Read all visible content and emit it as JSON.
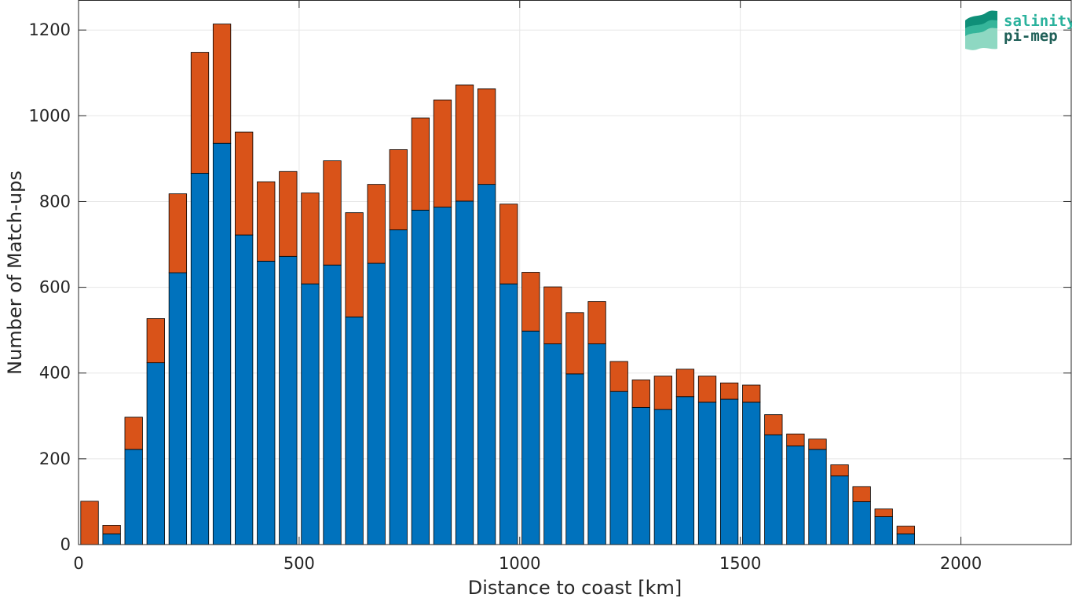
{
  "chart_data": {
    "type": "bar",
    "stacked": true,
    "xlabel": "Distance to coast [km]",
    "ylabel": "Number of Match-ups",
    "xlim": [
      0,
      2250
    ],
    "ylim": [
      0,
      1270
    ],
    "x_ticks": [
      0,
      500,
      1000,
      1500,
      2000
    ],
    "y_ticks": [
      0,
      200,
      400,
      600,
      800,
      1000,
      1200
    ],
    "grid": true,
    "bin_width": 50,
    "bin_centers": [
      25,
      75,
      125,
      175,
      225,
      275,
      325,
      375,
      425,
      475,
      525,
      575,
      625,
      675,
      725,
      775,
      825,
      875,
      925,
      975,
      1025,
      1075,
      1125,
      1175,
      1225,
      1275,
      1325,
      1375,
      1425,
      1475,
      1525,
      1575,
      1625,
      1675,
      1725,
      1775,
      1825,
      1875
    ],
    "series": [
      {
        "color": "#0072BD",
        "values": [
          0,
          25,
          222,
          424,
          634,
          866,
          936,
          722,
          661,
          672,
          608,
          652,
          531,
          656,
          734,
          780,
          787,
          801,
          840,
          608,
          498,
          468,
          398,
          468,
          357,
          320,
          315,
          345,
          332,
          339,
          332,
          256,
          230,
          222,
          160,
          100,
          65,
          25
        ]
      },
      {
        "color": "#D95319",
        "values": [
          101,
          20,
          75,
          103,
          184,
          282,
          278,
          240,
          185,
          198,
          212,
          243,
          243,
          184,
          187,
          215,
          250,
          271,
          223,
          186,
          137,
          133,
          143,
          99,
          70,
          64,
          78,
          64,
          61,
          38,
          40,
          47,
          28,
          24,
          26,
          35,
          18,
          18
        ]
      }
    ]
  },
  "logo": {
    "line1": "salinity",
    "line2": "pi-mep"
  }
}
